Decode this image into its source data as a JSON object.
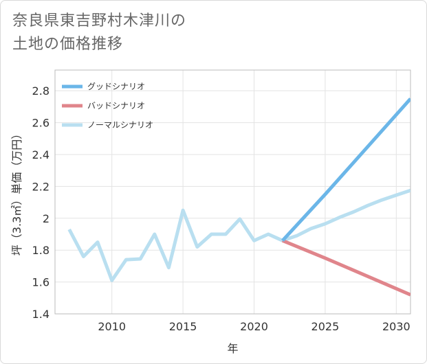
{
  "title_lines": [
    "奈良県東吉野村木津川の",
    "土地の価格推移"
  ],
  "chart_data": {
    "type": "line",
    "xlabel": "年",
    "ylabel": "坪（3.3㎡）単価（万円）",
    "xlim": [
      2006,
      2031
    ],
    "ylim": [
      1.4,
      2.93
    ],
    "x_ticks": [
      2010,
      2015,
      2020,
      2025,
      2030
    ],
    "y_ticks": [
      1.4,
      1.6,
      1.8,
      2,
      2.2,
      2.4,
      2.6,
      2.8
    ],
    "y_tick_labels": [
      "1.4",
      "1.6",
      "1.8",
      "2",
      "2.2",
      "2.4",
      "2.6",
      "2.8"
    ],
    "grid": true,
    "legend_position": "top-left",
    "series": [
      {
        "name": "グッドシナリオ",
        "color": "#6bb6e8",
        "x": [
          2022,
          2025,
          2031
        ],
        "y": [
          1.86,
          2.15,
          2.75
        ]
      },
      {
        "name": "バッドシナリオ",
        "color": "#e0858b",
        "x": [
          2022,
          2025,
          2031
        ],
        "y": [
          1.86,
          1.75,
          1.52
        ]
      },
      {
        "name": "ノーマルシナリオ",
        "color": "#b9dff0",
        "x": [
          2007,
          2008,
          2009,
          2010,
          2011,
          2012,
          2013,
          2014,
          2015,
          2016,
          2017,
          2018,
          2019,
          2020,
          2021,
          2022,
          2023,
          2024,
          2025,
          2026,
          2027,
          2028,
          2029,
          2030,
          2031
        ],
        "y": [
          1.93,
          1.76,
          1.85,
          1.61,
          1.74,
          1.745,
          1.9,
          1.69,
          2.05,
          1.82,
          1.9,
          1.9,
          1.995,
          1.86,
          1.9,
          1.86,
          1.89,
          1.935,
          1.965,
          2.005,
          2.04,
          2.08,
          2.115,
          2.145,
          2.175
        ]
      }
    ]
  }
}
